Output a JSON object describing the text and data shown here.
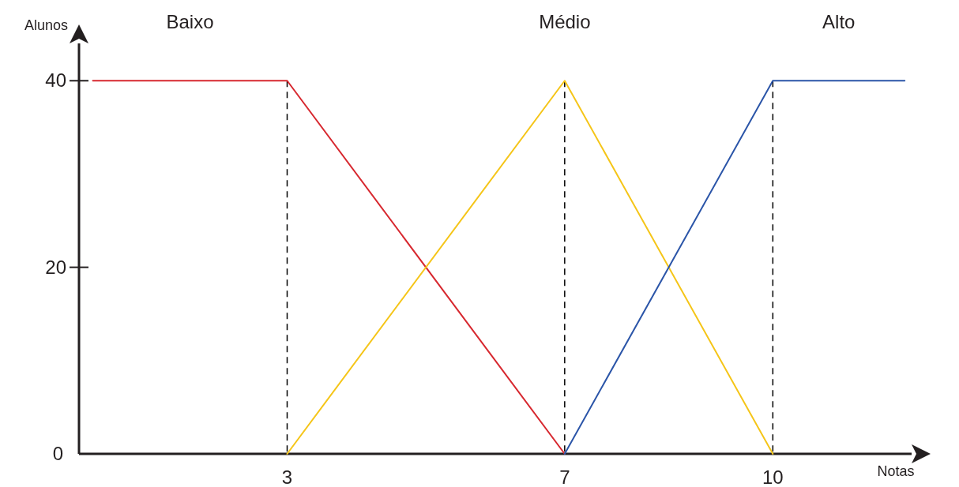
{
  "chart_data": {
    "type": "line",
    "xlabel": "Notas",
    "ylabel": "Alunos",
    "xlim": [
      0,
      12
    ],
    "ylim": [
      0,
      44
    ],
    "xticks": [
      3,
      7,
      10
    ],
    "yticks": [
      0,
      20,
      40
    ],
    "grid": false,
    "marker": "none",
    "line_style": "solid",
    "series": [
      {
        "name": "Baixo",
        "color": "#d7282f",
        "x": [
          0.2,
          3,
          7
        ],
        "values": [
          40,
          40,
          0
        ]
      },
      {
        "name": "Médio",
        "color": "#f5c518",
        "x": [
          3,
          7,
          10
        ],
        "values": [
          0,
          40,
          0
        ]
      },
      {
        "name": "Alto",
        "color": "#2b55a8",
        "x": [
          7,
          10,
          11.9
        ],
        "values": [
          0,
          40,
          40
        ]
      }
    ],
    "ref_lines": [
      {
        "axis": "x",
        "value": 3,
        "color": "#000000",
        "line_style": "dashed"
      },
      {
        "axis": "x",
        "value": 7,
        "color": "#000000",
        "line_style": "dashed"
      },
      {
        "axis": "x",
        "value": 10,
        "color": "#000000",
        "line_style": "dashed"
      }
    ]
  }
}
